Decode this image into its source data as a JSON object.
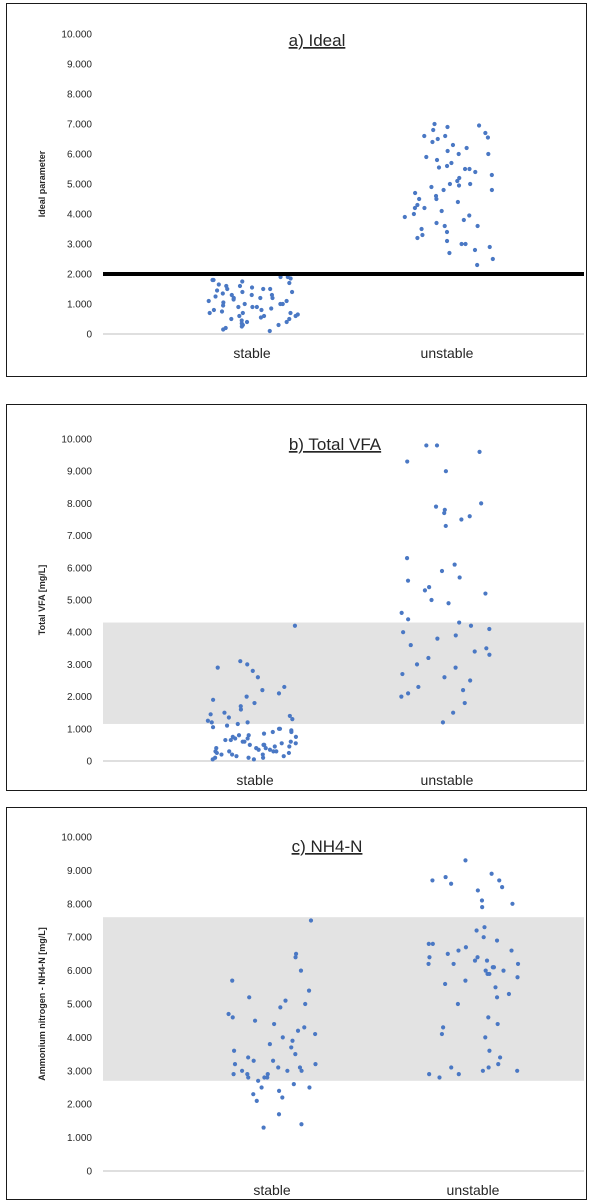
{
  "chart_data": [
    {
      "type": "scatter",
      "title": "a) Ideal",
      "xlabel": "",
      "ylabel": "Ideal parameter",
      "ylim": [
        0,
        10
      ],
      "yticks": [
        "0",
        "1.000",
        "2.000",
        "3.000",
        "4.000",
        "5.000",
        "6.000",
        "7.000",
        "8.000",
        "9.000",
        "10.000"
      ],
      "categories": [
        "stable",
        "unstable"
      ],
      "threshold_line": 2.0,
      "band": null,
      "series": [
        {
          "category": "stable",
          "values": [
            1.9,
            1.85,
            1.8,
            1.75,
            1.7,
            1.65,
            1.6,
            1.55,
            1.5,
            1.5,
            1.45,
            1.4,
            1.4,
            1.35,
            1.3,
            1.3,
            1.25,
            1.2,
            1.2,
            1.15,
            1.1,
            1.1,
            1.05,
            1.0,
            1.0,
            0.95,
            0.9,
            0.9,
            0.85,
            0.8,
            0.8,
            0.75,
            0.7,
            0.7,
            0.65,
            0.6,
            0.6,
            0.55,
            0.5,
            0.5,
            0.45,
            0.4,
            0.35,
            0.3,
            0.3,
            0.25,
            0.2,
            0.15,
            0.1,
            1.8,
            1.6,
            1.3,
            1.0,
            0.7,
            0.4,
            1.9,
            1.5,
            1.2,
            0.9,
            0.6
          ]
        },
        {
          "category": "unstable",
          "values": [
            7.0,
            6.95,
            6.9,
            6.8,
            6.7,
            6.6,
            6.55,
            6.5,
            6.4,
            6.3,
            6.2,
            6.1,
            6.0,
            5.9,
            5.8,
            5.7,
            5.6,
            5.55,
            5.5,
            5.4,
            5.3,
            5.2,
            5.1,
            5.0,
            4.95,
            4.9,
            4.8,
            4.7,
            4.6,
            4.5,
            4.4,
            4.3,
            4.2,
            4.1,
            4.0,
            3.95,
            3.9,
            3.8,
            3.7,
            3.6,
            3.5,
            3.4,
            3.3,
            3.2,
            3.1,
            3.0,
            2.9,
            2.8,
            2.7,
            2.5,
            2.3,
            6.6,
            5.5,
            4.8,
            4.2,
            3.6,
            3.0,
            6.0,
            5.0,
            4.5
          ]
        }
      ]
    },
    {
      "type": "scatter",
      "title": "b) Total VFA",
      "xlabel": "",
      "ylabel": "Total VFA [mg/L]",
      "ylim": [
        0,
        10
      ],
      "yticks": [
        "0",
        "1.000",
        "2.000",
        "3.000",
        "4.000",
        "5.000",
        "6.000",
        "7.000",
        "8.000",
        "9.000",
        "10.000"
      ],
      "categories": [
        "stable",
        "unstable"
      ],
      "threshold_line": null,
      "band": [
        1.15,
        4.3
      ],
      "series": [
        {
          "category": "stable",
          "values": [
            4.2,
            3.1,
            3.0,
            2.9,
            2.8,
            2.6,
            2.3,
            2.2,
            2.1,
            2.0,
            1.9,
            1.8,
            1.7,
            1.6,
            1.5,
            1.45,
            1.4,
            1.35,
            1.3,
            1.25,
            1.2,
            1.15,
            1.1,
            1.05,
            1.0,
            0.95,
            0.9,
            0.85,
            0.8,
            0.8,
            0.75,
            0.7,
            0.7,
            0.65,
            0.6,
            0.6,
            0.55,
            0.5,
            0.5,
            0.5,
            0.45,
            0.4,
            0.4,
            0.4,
            0.35,
            0.3,
            0.3,
            0.3,
            0.25,
            0.2,
            0.2,
            0.2,
            0.15,
            0.1,
            0.1,
            0.1,
            0.05,
            0.05,
            1.2,
            0.9,
            0.6,
            0.3,
            0.15,
            0.45,
            0.75,
            1.0,
            0.25,
            0.55,
            0.35,
            0.65
          ]
        },
        {
          "category": "unstable",
          "values": [
            9.8,
            9.8,
            9.6,
            9.3,
            9.0,
            8.0,
            7.9,
            7.8,
            7.7,
            7.6,
            7.5,
            6.3,
            6.1,
            5.9,
            5.6,
            5.4,
            5.3,
            5.2,
            5.0,
            4.9,
            4.6,
            4.4,
            4.3,
            4.2,
            4.1,
            4.0,
            3.9,
            3.8,
            3.6,
            3.5,
            3.4,
            3.2,
            3.0,
            2.9,
            2.7,
            2.5,
            2.3,
            2.2,
            2.1,
            2.0,
            1.8,
            1.5,
            1.2,
            7.3,
            5.7,
            3.3,
            2.6
          ]
        }
      ]
    },
    {
      "type": "scatter",
      "title": "c) NH4-N",
      "xlabel": "",
      "ylabel": "Ammonium nitrogen - NH4-N [mg/L]",
      "ylim": [
        0,
        10
      ],
      "yticks": [
        "0",
        "1.000",
        "2.000",
        "3.000",
        "4.000",
        "5.000",
        "6.000",
        "7.000",
        "8.000",
        "9.000",
        "10.000"
      ],
      "categories": [
        "stable",
        "unstable"
      ],
      "threshold_line": null,
      "band": [
        2.7,
        7.6
      ],
      "series": [
        {
          "category": "stable",
          "values": [
            7.5,
            6.5,
            6.4,
            6.0,
            5.7,
            5.4,
            5.2,
            5.1,
            5.0,
            4.9,
            4.7,
            4.6,
            4.5,
            4.4,
            4.3,
            4.2,
            4.0,
            3.9,
            3.8,
            3.7,
            3.6,
            3.5,
            3.4,
            3.3,
            3.2,
            3.1,
            3.1,
            3.0,
            3.0,
            2.9,
            2.9,
            2.8,
            2.8,
            2.7,
            2.6,
            2.5,
            2.5,
            2.4,
            2.3,
            2.2,
            2.1,
            1.7,
            1.4,
            1.3,
            3.0,
            3.2,
            2.8,
            4.1,
            3.3,
            2.9
          ]
        },
        {
          "category": "unstable",
          "values": [
            9.3,
            8.9,
            8.8,
            8.7,
            8.7,
            8.6,
            8.5,
            8.4,
            8.1,
            8.0,
            7.9,
            7.3,
            7.2,
            7.0,
            6.9,
            6.8,
            6.8,
            6.7,
            6.6,
            6.5,
            6.4,
            6.3,
            6.3,
            6.2,
            6.2,
            6.1,
            6.1,
            6.0,
            6.0,
            5.9,
            5.8,
            5.7,
            5.6,
            5.5,
            5.3,
            5.2,
            5.0,
            4.6,
            4.4,
            4.3,
            4.1,
            4.0,
            3.6,
            3.4,
            3.2,
            3.1,
            3.0,
            3.0,
            2.9,
            2.8,
            6.4,
            6.6,
            5.9,
            6.2,
            3.1,
            2.9
          ]
        }
      ]
    }
  ]
}
